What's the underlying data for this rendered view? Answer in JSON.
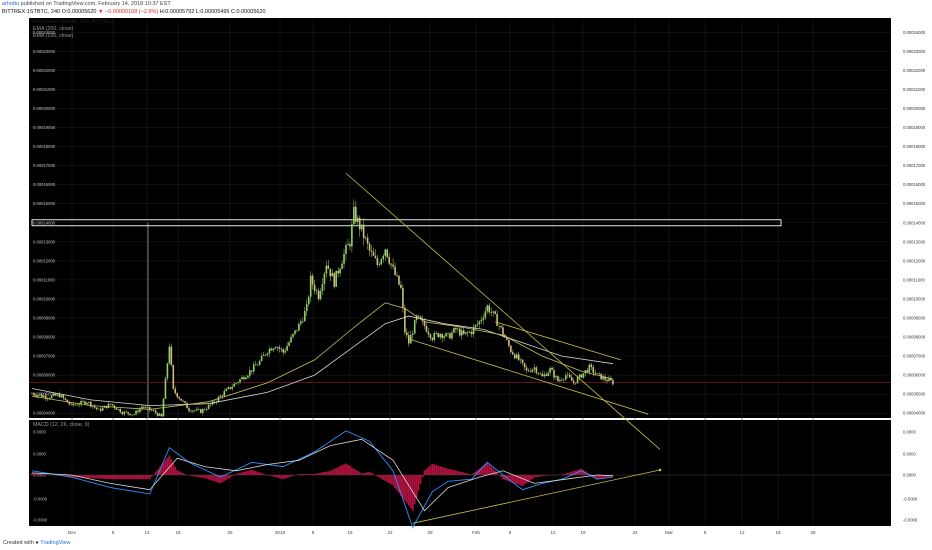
{
  "header": {
    "user": "arhottu",
    "published_text": "published on TradingView.com, February 14, 2018 10:37 EST",
    "symbol": "BITTREX:1STBTC, 240",
    "open": "O:0.00005620",
    "change": "▼ −0.00000168 (−2.9%)",
    "high": "H:0.00005792",
    "low": "L:0.00005495",
    "close": "C:0.00005620"
  },
  "legend": {
    "title": "FirstBlood / Bitcoin, 240, BITTREX",
    "ema1": "EMA (200, close)",
    "ema2": "EMA (100, close)",
    "macd": "MACD (12, 26, close, 9)"
  },
  "footer": {
    "created": "Created with",
    "brand": "TradingView"
  },
  "colors": {
    "background": "#000000",
    "grid": "#1e1e1e",
    "candle_up": "#8fd16a",
    "candle_down": "#c9c07a",
    "ema200": "#d6d6d6",
    "ema100": "#c9c05a",
    "trendline": "#c8c04a",
    "macd_line": "#2f8fff",
    "signal_line": "#d8d8d8",
    "histogram": "#b0123f",
    "price_line": "#7a1622",
    "resistance_box": "#ffffff"
  },
  "chart_data": {
    "type": "candlestick",
    "price_axis_ticks": [
      "0.00024000",
      "0.00023000",
      "0.00022000",
      "0.00021000",
      "0.00020000",
      "0.00019000",
      "0.00018000",
      "0.00017000",
      "0.00016000",
      "0.00015000",
      "0.00014000",
      "0.00013000",
      "0.00012000",
      "0.00011000",
      "0.00010000",
      "0.00009000",
      "0.00008000",
      "0.00007000",
      "0.00006000",
      "0.00005000",
      "0.00004000"
    ],
    "time_axis_ticks": [
      "Dec",
      "6",
      "13",
      "18",
      "25",
      "2018",
      "8",
      "15",
      "22",
      "29",
      "Feb",
      "5",
      "12",
      "19",
      "24",
      "Mar",
      "6",
      "12",
      "19",
      "26"
    ],
    "macd_axis_ticks": [
      "0.0000",
      "0.0000",
      "0.0000",
      "-0.0000",
      "-0.0000"
    ],
    "price_range": [
      3.75e-05,
      0.0002475
    ],
    "last_price": 5.62e-05,
    "resistance_level": 0.00014,
    "close_path": [
      [
        0,
        5.03e-05
      ],
      [
        4,
        4.85e-05
      ],
      [
        7,
        4.95e-05
      ],
      [
        10,
        4.4e-05
      ],
      [
        14,
        4.62e-05
      ],
      [
        17,
        4.15e-05
      ],
      [
        20,
        4.48e-05
      ],
      [
        23,
        4.05e-05
      ],
      [
        26,
        3.95e-05
      ],
      [
        28,
        4.35e-05
      ],
      [
        31,
        4.1e-05
      ],
      [
        33,
        3.8e-05
      ],
      [
        35,
        7.6e-05
      ],
      [
        36,
        5.2e-05
      ],
      [
        38,
        4.7e-05
      ],
      [
        40,
        4.2e-05
      ],
      [
        43,
        4.1e-05
      ],
      [
        46,
        4.5e-05
      ],
      [
        49,
        5.1e-05
      ],
      [
        52,
        5.6e-05
      ],
      [
        55,
        6.1e-05
      ],
      [
        58,
        6.7e-05
      ],
      [
        60,
        7.3e-05
      ],
      [
        62,
        7.6e-05
      ],
      [
        64,
        7.2e-05
      ],
      [
        66,
        7.9e-05
      ],
      [
        68,
        8.6e-05
      ],
      [
        70,
        9.5e-05
      ],
      [
        71,
        0.00011
      ],
      [
        73,
        0.000102
      ],
      [
        75,
        0.000119
      ],
      [
        77,
        0.000109
      ],
      [
        79,
        0.000121
      ],
      [
        81,
        0.00013
      ],
      [
        82,
        0.000145
      ],
      [
        84,
        0.000136
      ],
      [
        86,
        0.000125
      ],
      [
        88,
        0.000118
      ],
      [
        90,
        0.000127
      ],
      [
        92,
        0.000115
      ],
      [
        94,
        0.000105
      ],
      [
        95,
        8.3e-05
      ],
      [
        96,
        7.7e-05
      ],
      [
        98,
        9e-05
      ],
      [
        100,
        8.6e-05
      ],
      [
        102,
        8e-05
      ],
      [
        104,
        8.2e-05
      ],
      [
        106,
        8e-05
      ],
      [
        108,
        8.4e-05
      ],
      [
        110,
        8.1e-05
      ],
      [
        112,
        8.3e-05
      ],
      [
        114,
        8.8e-05
      ],
      [
        116,
        9.6e-05
      ],
      [
        118,
        9e-05
      ],
      [
        120,
        8.2e-05
      ],
      [
        122,
        7.3e-05
      ],
      [
        124,
        6.8e-05
      ],
      [
        126,
        6.2e-05
      ],
      [
        128,
        6.4e-05
      ],
      [
        130,
        5.9e-05
      ],
      [
        132,
        6.3e-05
      ],
      [
        134,
        5.7e-05
      ],
      [
        136,
        6e-05
      ],
      [
        138,
        5.6e-05
      ],
      [
        140,
        6e-05
      ],
      [
        142,
        6.4e-05
      ],
      [
        144,
        6e-05
      ],
      [
        146,
        5.8e-05
      ],
      [
        148,
        5.62e-05
      ]
    ],
    "ema200": [
      [
        0,
        5.3e-05
      ],
      [
        15,
        4.7e-05
      ],
      [
        30,
        4.4e-05
      ],
      [
        45,
        4.5e-05
      ],
      [
        60,
        5.1e-05
      ],
      [
        72,
        6e-05
      ],
      [
        82,
        7.5e-05
      ],
      [
        90,
        8.7e-05
      ],
      [
        96,
        9.1e-05
      ],
      [
        105,
        8.7e-05
      ],
      [
        115,
        8.4e-05
      ],
      [
        125,
        7.7e-05
      ],
      [
        135,
        7e-05
      ],
      [
        148,
        6.6e-05
      ]
    ],
    "ema100": [
      [
        0,
        4.9e-05
      ],
      [
        15,
        4.4e-05
      ],
      [
        30,
        4.2e-05
      ],
      [
        45,
        4.6e-05
      ],
      [
        60,
        5.6e-05
      ],
      [
        72,
        6.8e-05
      ],
      [
        82,
        8.5e-05
      ],
      [
        90,
        9.8e-05
      ],
      [
        95,
        9.5e-05
      ],
      [
        100,
        8.8e-05
      ],
      [
        110,
        8.5e-05
      ],
      [
        120,
        8.1e-05
      ],
      [
        130,
        7e-05
      ],
      [
        140,
        6.2e-05
      ],
      [
        148,
        5.8e-05
      ]
    ],
    "trendlines": [
      {
        "from": [
          80,
          0.000166
        ],
        "to": [
          160,
          2.1e-05
        ]
      },
      {
        "from": [
          96,
          7.9e-05
        ],
        "to": [
          157,
          3.95e-05
        ]
      },
      {
        "from": [
          118,
          8.8e-05
        ],
        "to": [
          150,
          6.8e-05
        ]
      }
    ],
    "macd_line": [
      [
        0,
        0.1
      ],
      [
        10,
        -0.05
      ],
      [
        20,
        -0.3
      ],
      [
        30,
        -0.45
      ],
      [
        35,
        0.65
      ],
      [
        40,
        0.3
      ],
      [
        48,
        -0.05
      ],
      [
        56,
        0.3
      ],
      [
        64,
        0.2
      ],
      [
        72,
        0.55
      ],
      [
        80,
        1.05
      ],
      [
        86,
        0.8
      ],
      [
        92,
        0.1
      ],
      [
        97,
        -1.25
      ],
      [
        102,
        -0.4
      ],
      [
        106,
        -0.15
      ],
      [
        112,
        -0.1
      ],
      [
        116,
        0.3
      ],
      [
        120,
        0.0
      ],
      [
        125,
        -0.35
      ],
      [
        130,
        -0.2
      ],
      [
        135,
        -0.1
      ],
      [
        140,
        0.1
      ],
      [
        144,
        -0.1
      ],
      [
        148,
        -0.05
      ]
    ],
    "signal_line": [
      [
        0,
        0.05
      ],
      [
        10,
        0.0
      ],
      [
        20,
        -0.2
      ],
      [
        30,
        -0.35
      ],
      [
        37,
        0.4
      ],
      [
        44,
        0.2
      ],
      [
        52,
        0.1
      ],
      [
        60,
        0.25
      ],
      [
        68,
        0.35
      ],
      [
        76,
        0.7
      ],
      [
        84,
        0.85
      ],
      [
        92,
        0.35
      ],
      [
        100,
        -0.85
      ],
      [
        106,
        -0.3
      ],
      [
        114,
        -0.05
      ],
      [
        120,
        0.1
      ],
      [
        128,
        -0.2
      ],
      [
        136,
        -0.1
      ],
      [
        144,
        0.0
      ],
      [
        148,
        -0.02
      ]
    ],
    "macd_trendline": {
      "from": [
        97,
        -1.15
      ],
      "to": [
        160,
        0.12
      ]
    }
  }
}
